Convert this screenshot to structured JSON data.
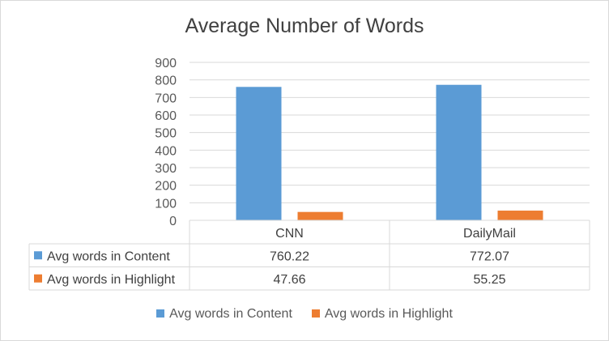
{
  "chart_data": {
    "type": "bar",
    "title": "Average Number of Words",
    "categories": [
      "CNN",
      "DailyMail"
    ],
    "series": [
      {
        "name": "Avg words in Content",
        "values": [
          760.22,
          772.07
        ],
        "color": "#5b9bd5",
        "labels": [
          "760.22",
          "772.07"
        ]
      },
      {
        "name": "Avg words in Highlight",
        "values": [
          47.66,
          55.25
        ],
        "color": "#ed7d31",
        "labels": [
          "47.66",
          "55.25"
        ]
      }
    ],
    "ylim": [
      0,
      900
    ],
    "yticks": [
      "0",
      "100",
      "200",
      "300",
      "400",
      "500",
      "600",
      "700",
      "800",
      "900"
    ],
    "grid": true,
    "data_table": true,
    "legend": "bottom"
  }
}
